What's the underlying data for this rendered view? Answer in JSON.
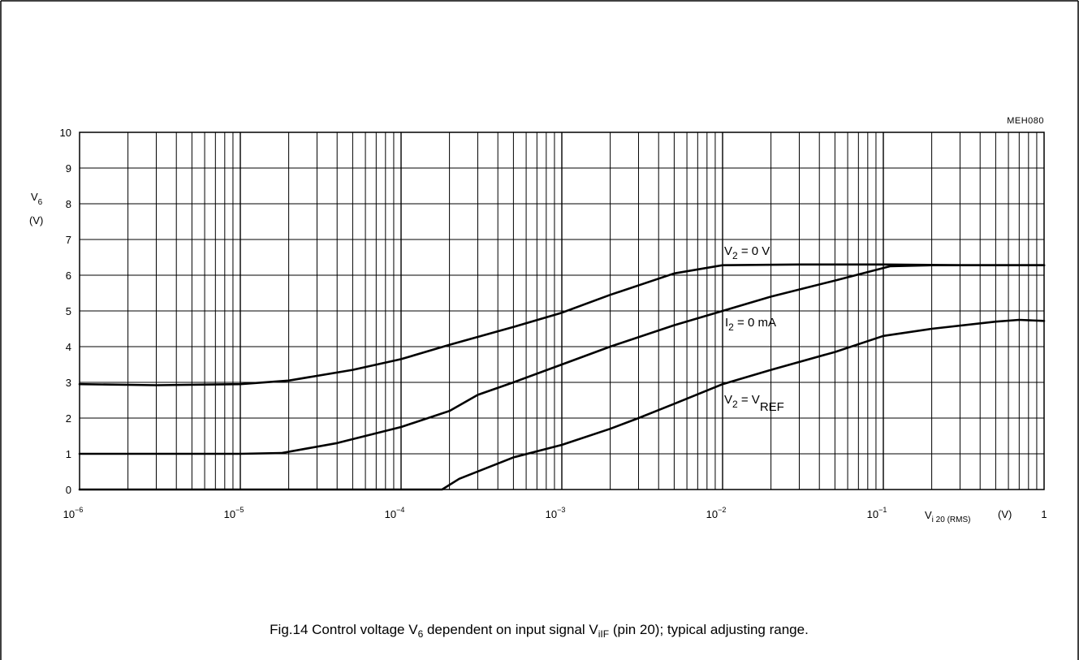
{
  "figure": {
    "code": "MEH080",
    "caption_prefix": "Fig.14  Control voltage V",
    "caption_sub1": "6",
    "caption_mid": " dependent on input signal V",
    "caption_sub2": "iIF",
    "caption_suffix": " (pin 20); typical adjusting range."
  },
  "chart_data": {
    "type": "line",
    "x_scale": "log",
    "xlim": [
      1e-06,
      1
    ],
    "ylim": [
      0,
      10
    ],
    "grid": true,
    "ylabel": {
      "main": "V",
      "sub": "6",
      "unit": "(V)"
    },
    "xlabel": {
      "main": "V",
      "sub": "i 20 (RMS)",
      "unit": "(V)"
    },
    "x_ticks": [
      {
        "base": "10",
        "exp": "−6",
        "value": 1e-06
      },
      {
        "base": "10",
        "exp": "−5",
        "value": 1e-05
      },
      {
        "base": "10",
        "exp": "−4",
        "value": 0.0001
      },
      {
        "base": "10",
        "exp": "−3",
        "value": 0.001
      },
      {
        "base": "10",
        "exp": "−2",
        "value": 0.01
      },
      {
        "base": "10",
        "exp": "−1",
        "value": 0.1
      },
      {
        "base": "1",
        "exp": "",
        "value": 1
      }
    ],
    "y_ticks": [
      "0",
      "1",
      "2",
      "3",
      "4",
      "5",
      "6",
      "7",
      "8",
      "9",
      "10"
    ],
    "series": [
      {
        "label_main": "V",
        "label_sub": "2",
        "label_rest": " = 0 V",
        "x": [
          1e-06,
          3e-06,
          1e-05,
          2e-05,
          5e-05,
          0.0001,
          0.0002,
          0.0005,
          0.001,
          0.002,
          0.005,
          0.01,
          0.03,
          0.1,
          0.3,
          1
        ],
        "y": [
          2.95,
          2.92,
          2.95,
          3.05,
          3.35,
          3.65,
          4.05,
          4.55,
          4.95,
          5.45,
          6.05,
          6.28,
          6.3,
          6.3,
          6.28,
          6.28
        ]
      },
      {
        "label_main": "I",
        "label_sub": "2",
        "label_rest": " = 0 mA",
        "x": [
          1e-06,
          1e-05,
          1.8e-05,
          4e-05,
          0.0001,
          0.0002,
          0.0003,
          0.0005,
          0.001,
          0.002,
          0.005,
          0.01,
          0.02,
          0.05,
          0.11,
          0.2,
          1
        ],
        "y": [
          1.0,
          1.0,
          1.02,
          1.3,
          1.75,
          2.2,
          2.65,
          3.0,
          3.5,
          4.0,
          4.6,
          5.0,
          5.4,
          5.85,
          6.25,
          6.28,
          6.28
        ]
      },
      {
        "label_main": "V",
        "label_sub": "2",
        "label_rest": " = V",
        "label_sub2": "REF",
        "x": [
          1e-06,
          1e-05,
          0.0001,
          0.00018,
          0.00023,
          0.0005,
          0.001,
          0.002,
          0.003,
          0.005,
          0.01,
          0.02,
          0.05,
          0.1,
          0.2,
          0.5,
          0.7,
          1
        ],
        "y": [
          0,
          0,
          0,
          0,
          0.3,
          0.9,
          1.25,
          1.7,
          2.0,
          2.4,
          2.95,
          3.35,
          3.85,
          4.3,
          4.5,
          4.7,
          4.75,
          4.72
        ]
      }
    ]
  }
}
